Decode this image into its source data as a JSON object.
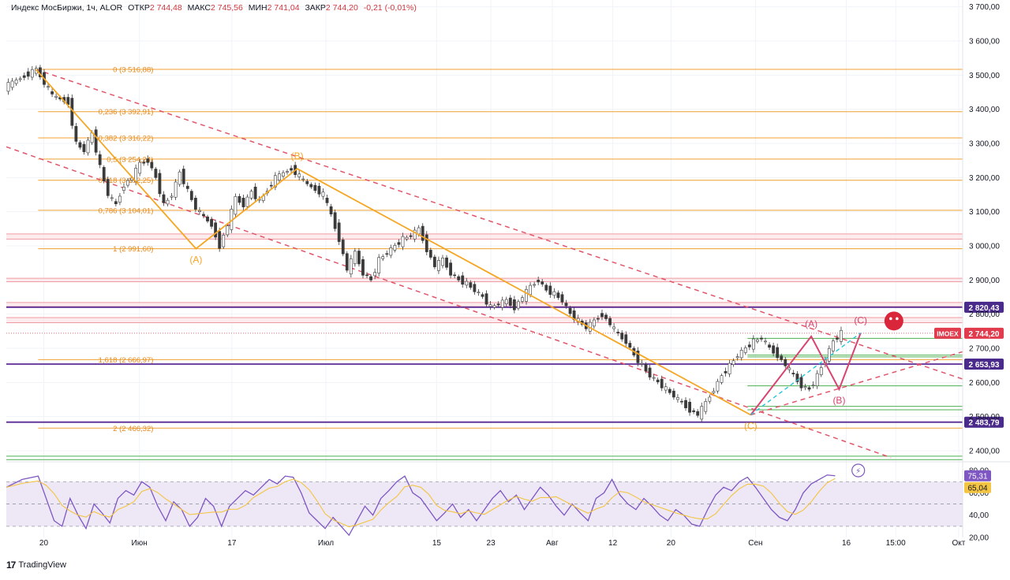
{
  "header": {
    "symbol": "Индекс МосБиржи, 1ч, ALOR",
    "open_label": "ОТКР",
    "open": "2 744,48",
    "high_label": "МАКС",
    "high": "2 745,56",
    "low_label": "МИН",
    "low": "2 741,04",
    "close_label": "ЗАКР",
    "close": "2 744,20",
    "change": "-0,21 (-0,01%)"
  },
  "branding": {
    "name": "TradingView"
  },
  "colors": {
    "fib": "#f0a030",
    "fib_text": "#e68a1e",
    "wave_orange": "#f5a623",
    "channel": "#e0566a",
    "wave_pink": "#d94370",
    "purple_line": "#5b2b94",
    "purple_label": "#4a2a8a",
    "price_red": "#e03c4e",
    "candle_up": "#26a69a",
    "candle_down": "#ef5350",
    "rsi": "#7e57c2",
    "rsi_ma": "#f4c542",
    "rsi_band": "#ede7f6",
    "green": "#4caf50",
    "teal_dash": "#26c6da",
    "grid": "#f0f3fa",
    "axis_text": "#131722"
  },
  "chart_data": {
    "type": "candlestick",
    "symbol": "IMOEX",
    "timeframe": "1ч",
    "y_range": [
      2370,
      3720
    ],
    "y_ticks": [
      "3 700,00",
      "3 600,00",
      "3 500,00",
      "3 400,00",
      "3 300,00",
      "3 200,00",
      "3 100,00",
      "3 000,00",
      "2 900,00",
      "2 800,00",
      "2 700,00",
      "2 600,00",
      "2 500,00",
      "2 400,00"
    ],
    "y_tick_values": [
      3700,
      3600,
      3500,
      3400,
      3300,
      3200,
      3100,
      3000,
      2900,
      2800,
      2700,
      2600,
      2500,
      2400
    ],
    "x_labels": [
      "20",
      "Июн",
      "17",
      "Июл",
      "15",
      "23",
      "Авг",
      "12",
      "20",
      "Сен",
      "16",
      "15:00",
      "Окт"
    ],
    "x_positions": [
      0.7,
      12.7,
      24.3,
      36.1,
      50.0,
      56.8,
      64.5,
      72.1,
      79.4,
      90.0,
      101.4,
      107.6,
      115.5
    ],
    "x_range": [
      -4,
      116
    ],
    "price_path": [
      [
        -4,
        3465
      ],
      [
        0,
        3516.88
      ],
      [
        2,
        3440
      ],
      [
        4,
        3420
      ],
      [
        5,
        3300
      ],
      [
        6,
        3280
      ],
      [
        7,
        3330
      ],
      [
        8,
        3230
      ],
      [
        9,
        3150
      ],
      [
        10,
        3120
      ],
      [
        11,
        3180
      ],
      [
        12,
        3200
      ],
      [
        13,
        3240
      ],
      [
        14,
        3250
      ],
      [
        15,
        3200
      ],
      [
        16,
        3120
      ],
      [
        17,
        3150
      ],
      [
        18,
        3215
      ],
      [
        19,
        3160
      ],
      [
        20,
        3110
      ],
      [
        22,
        3060
      ],
      [
        23,
        3000
      ],
      [
        24,
        3060
      ],
      [
        25,
        3140
      ],
      [
        26,
        3120
      ],
      [
        27,
        3160
      ],
      [
        28,
        3130
      ],
      [
        30,
        3200
      ],
      [
        32,
        3226
      ],
      [
        34,
        3180
      ],
      [
        36,
        3150
      ],
      [
        37,
        3090
      ],
      [
        38,
        3020
      ],
      [
        39,
        2930
      ],
      [
        40,
        2980
      ],
      [
        41,
        2920
      ],
      [
        42,
        2900
      ],
      [
        43,
        2960
      ],
      [
        44,
        2980
      ],
      [
        45,
        3000
      ],
      [
        46,
        3020
      ],
      [
        47,
        3030
      ],
      [
        48,
        3050
      ],
      [
        49,
        2990
      ],
      [
        50,
        2940
      ],
      [
        51,
        2960
      ],
      [
        52,
        2920
      ],
      [
        53,
        2900
      ],
      [
        54,
        2890
      ],
      [
        55,
        2870
      ],
      [
        56,
        2850
      ],
      [
        57,
        2820
      ],
      [
        58,
        2830
      ],
      [
        59,
        2840
      ],
      [
        60,
        2820
      ],
      [
        61,
        2850
      ],
      [
        62,
        2880
      ],
      [
        63,
        2900
      ],
      [
        64,
        2870
      ],
      [
        65,
        2860
      ],
      [
        66,
        2840
      ],
      [
        67,
        2800
      ],
      [
        68,
        2780
      ],
      [
        69,
        2760
      ],
      [
        70,
        2780
      ],
      [
        71,
        2800
      ],
      [
        72,
        2770
      ],
      [
        73,
        2740
      ],
      [
        74,
        2720
      ],
      [
        75,
        2680
      ],
      [
        76,
        2650
      ],
      [
        77,
        2620
      ],
      [
        78,
        2600
      ],
      [
        79,
        2580
      ],
      [
        80,
        2560
      ],
      [
        81,
        2540
      ],
      [
        82,
        2520
      ],
      [
        83,
        2505
      ],
      [
        84,
        2540
      ],
      [
        85,
        2580
      ],
      [
        86,
        2620
      ],
      [
        87,
        2650
      ],
      [
        88,
        2680
      ],
      [
        89,
        2700
      ],
      [
        90,
        2720
      ],
      [
        91,
        2730
      ],
      [
        92,
        2700
      ],
      [
        93,
        2680
      ],
      [
        94,
        2650
      ],
      [
        95,
        2620
      ],
      [
        96,
        2590
      ],
      [
        97,
        2580
      ],
      [
        98,
        2620
      ],
      [
        99,
        2670
      ],
      [
        100,
        2720
      ],
      [
        101,
        2745
      ]
    ],
    "wave_points": [
      [
        -0.3,
        3516.88
      ],
      [
        19.8,
        2991.6
      ],
      [
        32.5,
        3226
      ],
      [
        89.4,
        2505
      ],
      [
        97.0,
        2735
      ],
      [
        100.5,
        2580
      ],
      [
        103.2,
        2745
      ]
    ],
    "wave_labels": [
      {
        "text": "(A)",
        "x": 19.8,
        "y": 2991.6,
        "pos": "below",
        "color": "wave_orange"
      },
      {
        "text": "(B)",
        "x": 32.5,
        "y": 3226,
        "pos": "above",
        "color": "wave_orange"
      },
      {
        "text": "(C)",
        "x": 89.4,
        "y": 2505,
        "pos": "below",
        "color": "wave_orange"
      },
      {
        "text": "(A)",
        "x": 97.0,
        "y": 2735,
        "pos": "above",
        "color": "wave_pink"
      },
      {
        "text": "(B)",
        "x": 100.5,
        "y": 2580,
        "pos": "below",
        "color": "wave_pink"
      },
      {
        "text": "(C)",
        "x": 103.2,
        "y": 2745,
        "pos": "above",
        "color": "wave_pink"
      }
    ],
    "fib_levels": [
      {
        "label": "0 (3 516,88)",
        "value": 3516.88
      },
      {
        "label": "0,236 (3 392,91)",
        "value": 3392.91
      },
      {
        "label": "0,382 (3 316,22)",
        "value": 3316.22
      },
      {
        "label": "0,5 (3 254,24)",
        "value": 3254.24
      },
      {
        "label": "0,618 (3 192,25)",
        "value": 3192.25
      },
      {
        "label": "0,786 (3 104,01)",
        "value": 3104.01
      },
      {
        "label": "1 (2 991,60)",
        "value": 2991.6
      },
      {
        "label": "1,618 (2 666,97)",
        "value": 2666.97
      },
      {
        "label": "2 (2 466,32)",
        "value": 2466.32
      }
    ],
    "horizontal_levels": [
      {
        "label": "2 820,43",
        "value": 2820.43,
        "color": "purple_line"
      },
      {
        "label": "2 653,93",
        "value": 2653.93,
        "color": "purple_line"
      },
      {
        "label": "2 483,79",
        "value": 2483.79,
        "color": "purple_line"
      }
    ],
    "red_zones": [
      [
        3020,
        3035
      ],
      [
        2895,
        2905
      ],
      [
        2822,
        2834
      ],
      [
        2775,
        2790
      ]
    ],
    "green_lines": [
      2729,
      2680,
      2675,
      2590,
      2530,
      2520,
      2384,
      2374
    ],
    "channel_lines": [
      [
        [
          -0.3,
          3516.88
        ],
        [
          116,
          2610
        ]
      ],
      [
        [
          -4,
          3290
        ],
        [
          107,
          2380
        ]
      ],
      [
        [
          89.4,
          2505
        ],
        [
          116,
          2690
        ]
      ]
    ],
    "current_price": {
      "symbol": "IMOEX",
      "value": 2744.2,
      "label": "2 744,20"
    },
    "rsi": {
      "y_range": [
        20,
        85
      ],
      "ticks": [
        "80,00",
        "60,00",
        "40,00",
        "20,00"
      ],
      "tick_values": [
        80,
        60,
        40,
        20
      ],
      "band": [
        30,
        70
      ],
      "rsi_value": "75,31",
      "ma_value": "65,04",
      "values": [
        [
          -4,
          65
        ],
        [
          -2,
          72
        ],
        [
          0,
          75
        ],
        [
          1,
          55
        ],
        [
          2,
          35
        ],
        [
          3,
          30
        ],
        [
          4,
          55
        ],
        [
          5,
          40
        ],
        [
          6,
          28
        ],
        [
          7,
          50
        ],
        [
          8,
          42
        ],
        [
          9,
          33
        ],
        [
          10,
          55
        ],
        [
          11,
          62
        ],
        [
          12,
          58
        ],
        [
          13,
          70
        ],
        [
          14,
          65
        ],
        [
          15,
          48
        ],
        [
          16,
          35
        ],
        [
          17,
          52
        ],
        [
          18,
          45
        ],
        [
          19,
          30
        ],
        [
          20,
          38
        ],
        [
          21,
          55
        ],
        [
          22,
          48
        ],
        [
          23,
          30
        ],
        [
          24,
          48
        ],
        [
          25,
          55
        ],
        [
          26,
          62
        ],
        [
          27,
          58
        ],
        [
          28,
          65
        ],
        [
          29,
          72
        ],
        [
          30,
          68
        ],
        [
          31,
          75
        ],
        [
          32,
          74
        ],
        [
          33,
          60
        ],
        [
          34,
          42
        ],
        [
          35,
          35
        ],
        [
          36,
          28
        ],
        [
          37,
          38
        ],
        [
          38,
          30
        ],
        [
          39,
          22
        ],
        [
          40,
          35
        ],
        [
          41,
          48
        ],
        [
          42,
          40
        ],
        [
          43,
          55
        ],
        [
          44,
          62
        ],
        [
          45,
          70
        ],
        [
          46,
          75
        ],
        [
          47,
          60
        ],
        [
          48,
          55
        ],
        [
          49,
          45
        ],
        [
          50,
          35
        ],
        [
          51,
          42
        ],
        [
          52,
          50
        ],
        [
          53,
          38
        ],
        [
          54,
          45
        ],
        [
          55,
          35
        ],
        [
          56,
          45
        ],
        [
          57,
          55
        ],
        [
          58,
          62
        ],
        [
          59,
          52
        ],
        [
          60,
          58
        ],
        [
          61,
          45
        ],
        [
          62,
          55
        ],
        [
          63,
          65
        ],
        [
          64,
          58
        ],
        [
          65,
          48
        ],
        [
          66,
          40
        ],
        [
          67,
          50
        ],
        [
          68,
          42
        ],
        [
          69,
          35
        ],
        [
          70,
          55
        ],
        [
          71,
          60
        ],
        [
          72,
          72
        ],
        [
          73,
          58
        ],
        [
          74,
          50
        ],
        [
          75,
          45
        ],
        [
          76,
          55
        ],
        [
          77,
          48
        ],
        [
          78,
          40
        ],
        [
          79,
          35
        ],
        [
          80,
          45
        ],
        [
          81,
          40
        ],
        [
          82,
          32
        ],
        [
          83,
          30
        ],
        [
          84,
          45
        ],
        [
          85,
          58
        ],
        [
          86,
          65
        ],
        [
          87,
          62
        ],
        [
          88,
          70
        ],
        [
          89,
          74
        ],
        [
          90,
          65
        ],
        [
          91,
          55
        ],
        [
          92,
          45
        ],
        [
          93,
          38
        ],
        [
          94,
          35
        ],
        [
          95,
          45
        ],
        [
          96,
          60
        ],
        [
          97,
          68
        ],
        [
          98,
          72
        ],
        [
          99,
          76
        ],
        [
          100,
          75.31
        ]
      ]
    }
  }
}
